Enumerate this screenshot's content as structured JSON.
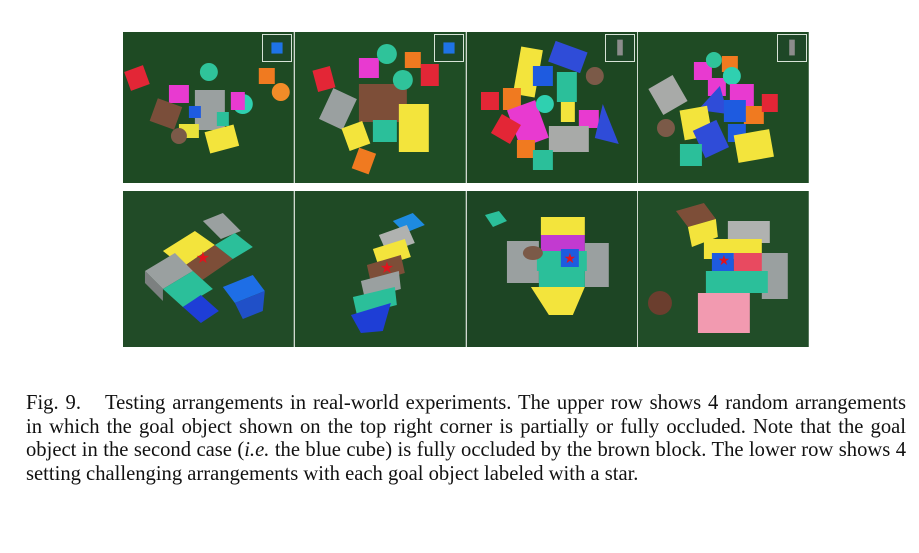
{
  "figure": {
    "upper_row": {
      "panels": [
        {
          "goal_object": "blue-cube",
          "goal_color": "#1e73e6"
        },
        {
          "goal_object": "blue-cube",
          "goal_color": "#1e73e6"
        },
        {
          "goal_object": "gray-block",
          "goal_color": "#8c8c8c"
        },
        {
          "goal_object": "gray-block",
          "goal_color": "#8c8c8c"
        }
      ]
    },
    "lower_row": {
      "panels": [
        {
          "goal_marker": "star"
        },
        {
          "goal_marker": "star"
        },
        {
          "goal_marker": "star"
        },
        {
          "goal_marker": "star"
        }
      ]
    },
    "colors": {
      "background_green": "#1f4a24",
      "star_red": "#e0141e"
    }
  },
  "caption": {
    "label": "Fig. 9.",
    "text_1": "Testing arrangements in real-world experiments. The upper row shows 4 random arrangements in which the goal object shown on the top right corner is partially or fully occluded. Note that the goal object in the second case (",
    "ie": "i.e.",
    "text_2": " the blue cube) is fully occluded by the brown block. The lower row shows 4 setting challenging arrangements with each goal object labeled with a star."
  }
}
